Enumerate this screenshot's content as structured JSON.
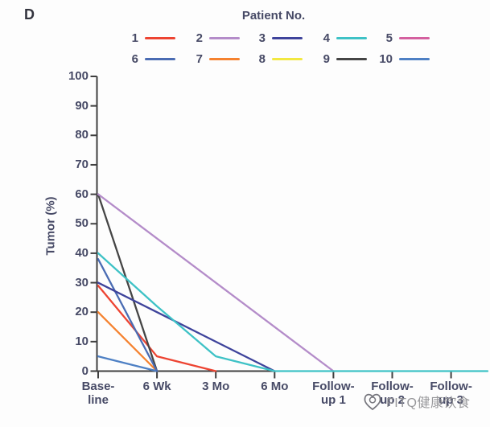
{
  "panel_label": "D",
  "legend": {
    "title": "Patient No.",
    "items": [
      {
        "label": "1",
        "color": "#ed4432"
      },
      {
        "label": "2",
        "color": "#b48cc9"
      },
      {
        "label": "3",
        "color": "#3e439b"
      },
      {
        "label": "4",
        "color": "#3ec2c6"
      },
      {
        "label": "5",
        "color": "#d4609f"
      },
      {
        "label": "6",
        "color": "#4a6cb3"
      },
      {
        "label": "7",
        "color": "#f5822f"
      },
      {
        "label": "8",
        "color": "#f2e841"
      },
      {
        "label": "9",
        "color": "#454545"
      },
      {
        "label": "10",
        "color": "#4e80c4"
      }
    ]
  },
  "chart_data": {
    "type": "line",
    "title": "",
    "xlabel": "",
    "ylabel": "Tumor (%)",
    "ylim": [
      0,
      100
    ],
    "grid": false,
    "legend_position": "top",
    "y_ticks": [
      0,
      10,
      20,
      30,
      40,
      50,
      60,
      70,
      80,
      90,
      100
    ],
    "categories": [
      "Baseline",
      "6 Wk",
      "3 Mo",
      "6 Mo",
      "Follow-up 1",
      "Follow-up 2",
      "Follow-up 3"
    ],
    "x_tick_display": [
      [
        "Base-",
        "line"
      ],
      [
        "6 Wk"
      ],
      [
        "3 Mo"
      ],
      [
        "6 Mo"
      ],
      [
        "Follow-",
        "up 1"
      ],
      [
        "Follow-",
        "up 2"
      ],
      [
        "Follow-",
        "up 3"
      ]
    ],
    "axis_color": "#3f3f3f",
    "draw_order": [
      5,
      8,
      1,
      7,
      9,
      10,
      6,
      3,
      2,
      4
    ],
    "series": [
      {
        "name": "1",
        "color": "#ed4432",
        "values": [
          29,
          5,
          0,
          0,
          0,
          0,
          0
        ],
        "visible": true,
        "extends_to_edge": false
      },
      {
        "name": "2",
        "color": "#b48cc9",
        "values": [
          60,
          45,
          30,
          15,
          0,
          0,
          0
        ],
        "visible": true,
        "extends_to_edge": false
      },
      {
        "name": "3",
        "color": "#3e439b",
        "values": [
          30,
          20,
          10,
          0,
          0,
          0,
          0
        ],
        "visible": true,
        "extends_to_edge": false
      },
      {
        "name": "4",
        "color": "#3ec2c6",
        "values": [
          40,
          22,
          5,
          0,
          0,
          0,
          0
        ],
        "visible": true,
        "extends_to_edge": true
      },
      {
        "name": "5",
        "color": "#d4609f",
        "values": [
          0,
          0,
          0,
          0,
          0,
          0,
          0
        ],
        "visible": false,
        "extends_to_edge": false
      },
      {
        "name": "6",
        "color": "#4a6cb3",
        "values": [
          38,
          0,
          0,
          0,
          0,
          0,
          0
        ],
        "visible": true,
        "extends_to_edge": false
      },
      {
        "name": "7",
        "color": "#f5822f",
        "values": [
          20,
          0,
          0,
          0,
          0,
          0,
          0
        ],
        "visible": true,
        "extends_to_edge": false
      },
      {
        "name": "8",
        "color": "#f2e841",
        "values": [
          0,
          0,
          0,
          0,
          0,
          0,
          0
        ],
        "visible": false,
        "extends_to_edge": false
      },
      {
        "name": "9",
        "color": "#454545",
        "values": [
          60,
          0,
          0,
          0,
          0,
          0,
          0
        ],
        "visible": true,
        "extends_to_edge": false
      },
      {
        "name": "10",
        "color": "#4e80c4",
        "values": [
          5,
          0,
          0,
          0,
          0,
          0,
          0
        ],
        "visible": true,
        "extends_to_edge": false
      }
    ]
  },
  "watermark": {
    "text": "FITQ健康饮食",
    "logo": "heart-circle-logo-icon"
  }
}
